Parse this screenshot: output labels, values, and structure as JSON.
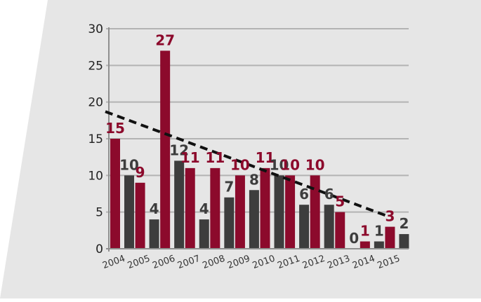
{
  "chart_data": {
    "type": "bar",
    "title": "",
    "xlabel": "",
    "ylabel": "",
    "categories": [
      "2004",
      "2005",
      "2006",
      "2007",
      "2008",
      "2009",
      "2010",
      "2011",
      "2012",
      "2013",
      "2014",
      "2015"
    ],
    "series": [
      {
        "values": [
          15,
          9,
          27,
          11,
          11,
          10,
          11,
          10,
          10,
          5,
          1,
          3
        ],
        "color": "#8c0a2c"
      },
      {
        "values": [
          10,
          4,
          12,
          4,
          7,
          8,
          10,
          6,
          6,
          0,
          1,
          2
        ],
        "color": "#3d3d3d"
      }
    ],
    "trendline": {
      "style": "dashed",
      "color": "#111111",
      "from": {
        "x": "2004",
        "y": 18.7
      },
      "to": {
        "x": "2015",
        "y": 4.5
      }
    },
    "yticks": [
      "0",
      "5",
      "10",
      "15",
      "20",
      "25",
      "30"
    ],
    "ylim": [
      0,
      30
    ],
    "grid": true,
    "legend": "none",
    "background_color": "#e6e6e6",
    "gridline_color": "#b3b3b3"
  }
}
